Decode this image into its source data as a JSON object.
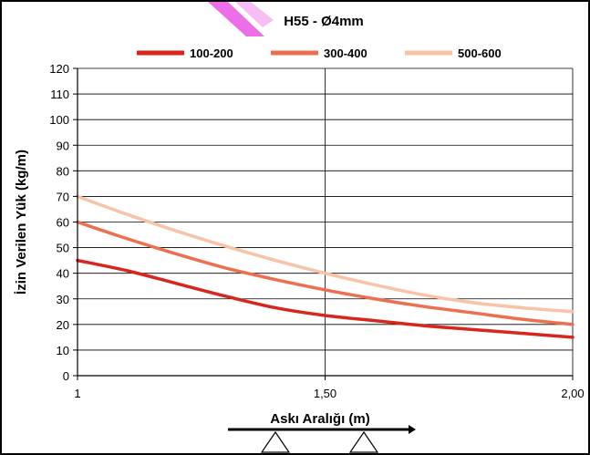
{
  "chart_data": {
    "type": "line",
    "title": "H55 - Ø4mm",
    "xlabel": "Askı Aralığı (m)",
    "ylabel": "İzin Verilen Yük (kg/m)",
    "xlim": [
      1,
      2
    ],
    "ylim": [
      0,
      120
    ],
    "x_ticks": [
      {
        "value": 1,
        "label": "1"
      },
      {
        "value": 1.5,
        "label": "1,50"
      },
      {
        "value": 2,
        "label": "2,00"
      }
    ],
    "y_ticks": [
      0,
      10,
      20,
      30,
      40,
      50,
      60,
      70,
      80,
      90,
      100,
      110,
      120
    ],
    "grid": "horizontal lines every 10; vertical line at 1,50",
    "legend_position": "top-center",
    "series": [
      {
        "name": "100-200",
        "color": "#d9261c",
        "x": [
          1.0,
          1.1,
          1.2,
          1.3,
          1.4,
          1.5,
          1.6,
          1.7,
          1.8,
          1.9,
          2.0
        ],
        "y": [
          45,
          41,
          36,
          31,
          26.5,
          23.5,
          21.5,
          19.5,
          18,
          16.5,
          15
        ]
      },
      {
        "name": "300-400",
        "color": "#ec6f4f",
        "x": [
          1.0,
          1.1,
          1.2,
          1.3,
          1.4,
          1.5,
          1.6,
          1.7,
          1.8,
          1.9,
          2.0
        ],
        "y": [
          60,
          53.5,
          47.5,
          42,
          37.5,
          33.5,
          30,
          27,
          24.5,
          22,
          20
        ]
      },
      {
        "name": "500-600",
        "color": "#f8c3a7",
        "x": [
          1.0,
          1.1,
          1.2,
          1.3,
          1.4,
          1.5,
          1.6,
          1.7,
          1.8,
          1.9,
          2.0
        ],
        "y": [
          70,
          63,
          56.5,
          50.5,
          45,
          40,
          35.5,
          31.5,
          28.5,
          26.5,
          25
        ]
      }
    ]
  }
}
